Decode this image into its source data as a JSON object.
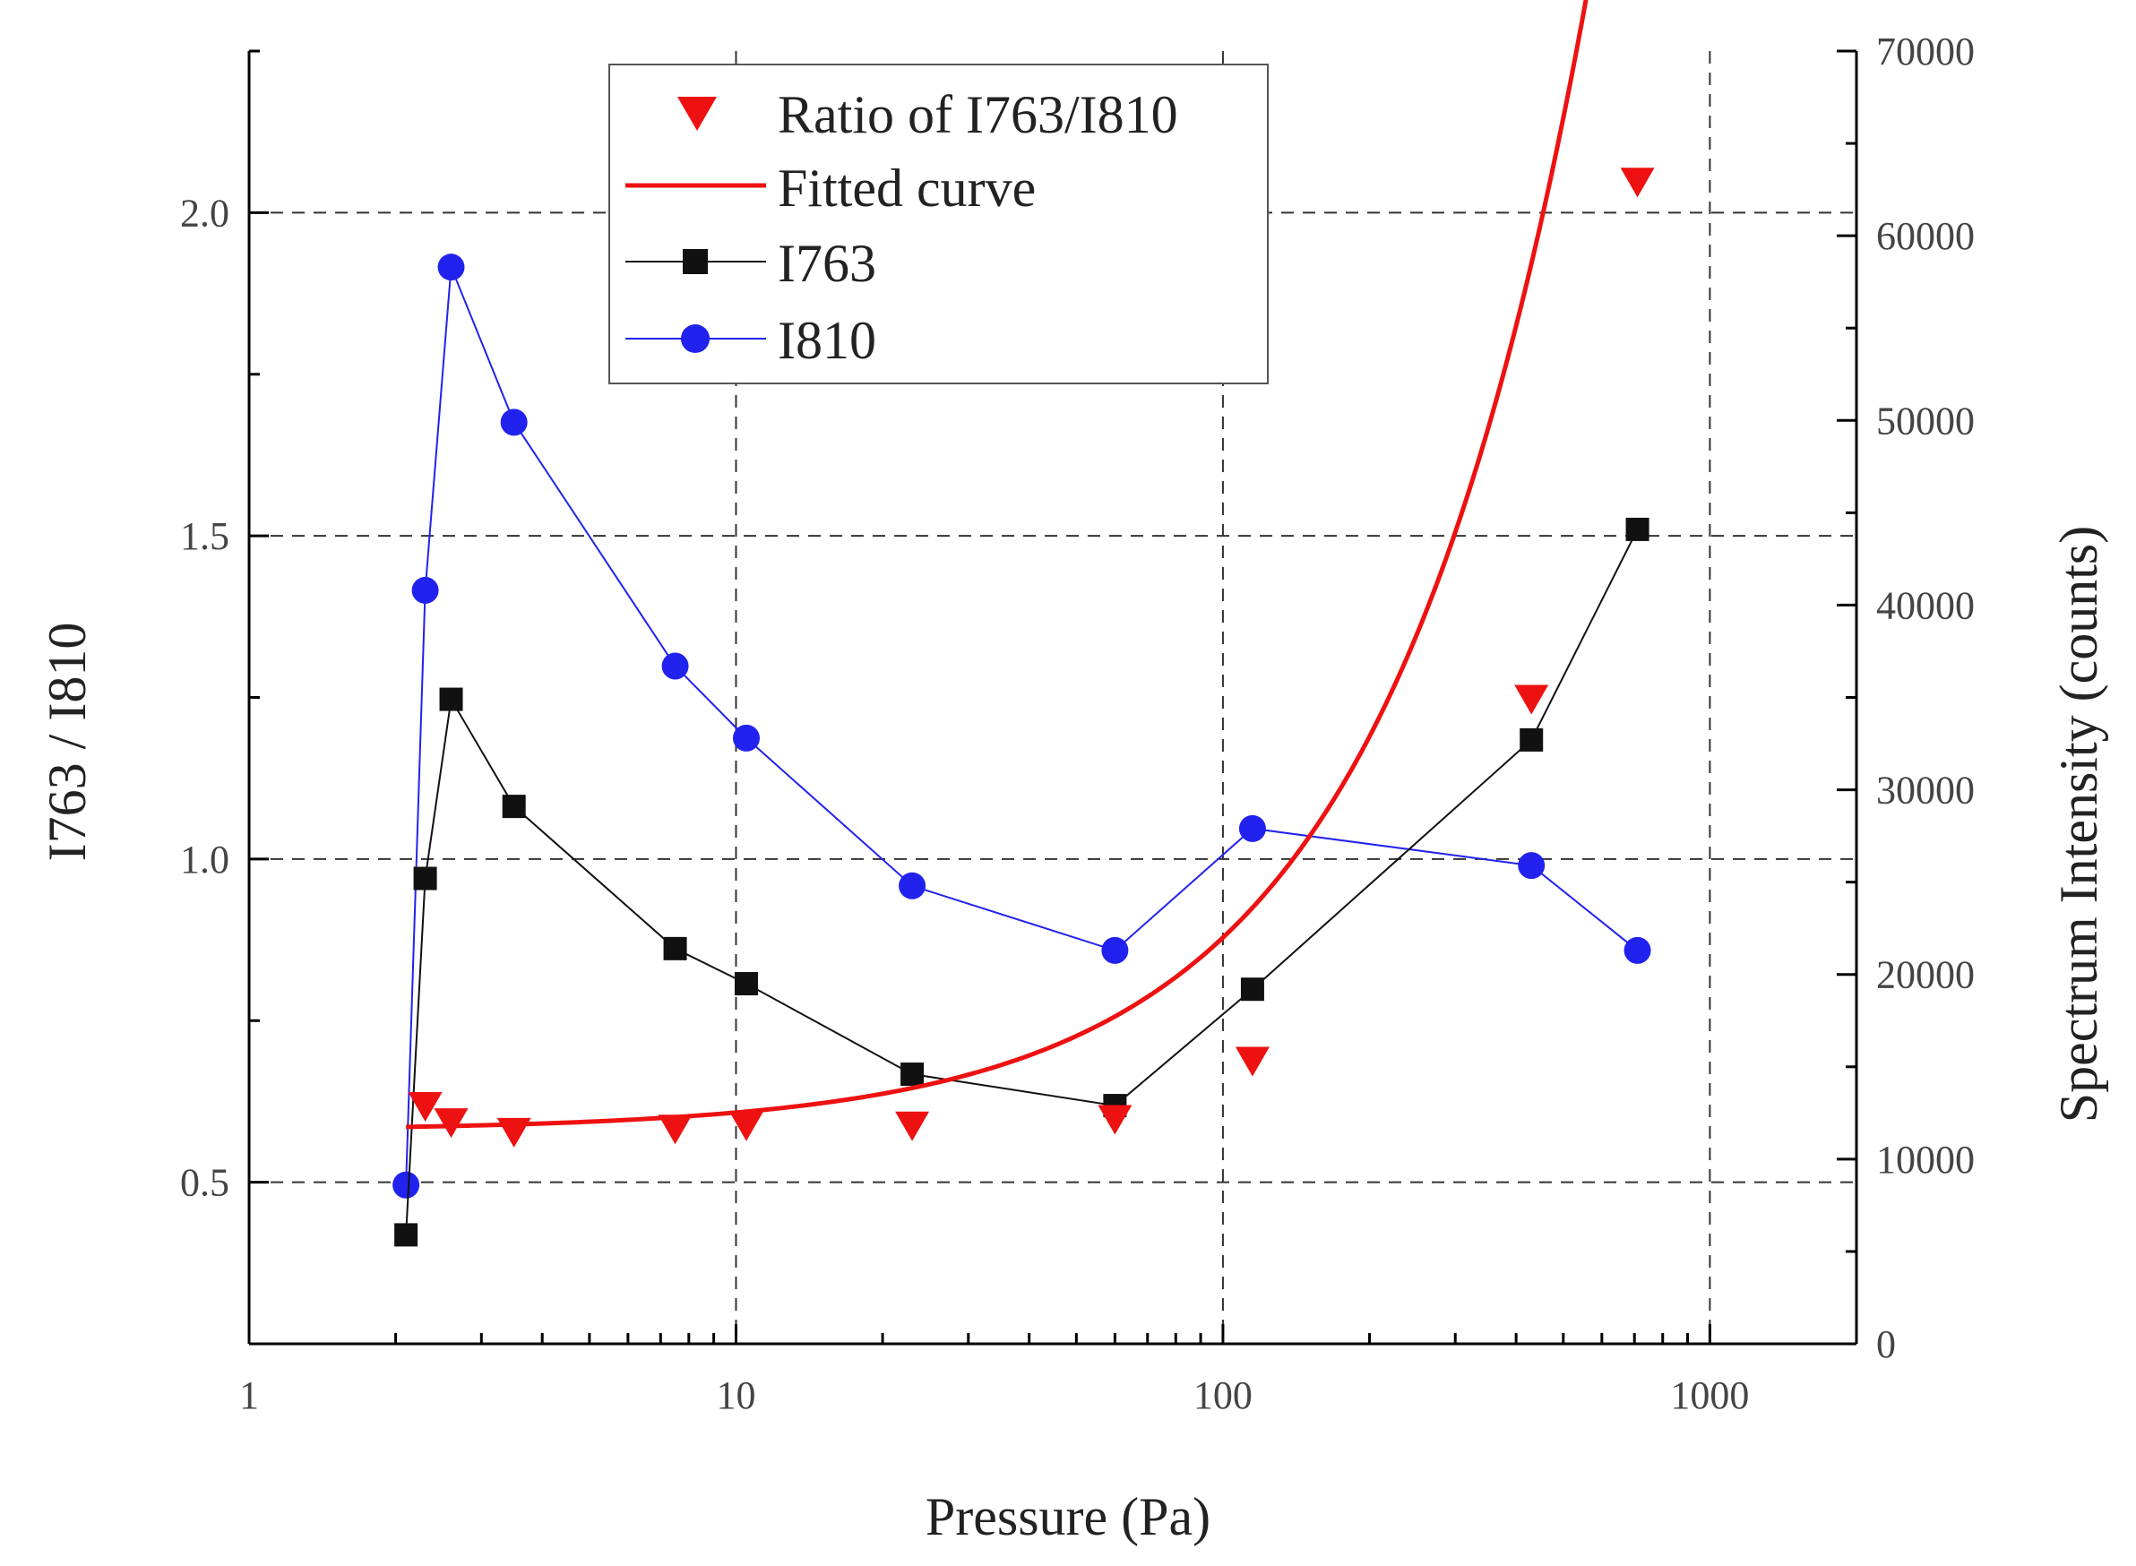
{
  "chart_data": {
    "type": "scatter",
    "xlabel": "Pressure (Pa)",
    "ylabel": "I763 / I810",
    "y2label": "Spectrum Intensity (counts)",
    "xscale": "log",
    "xlim": [
      1,
      2000
    ],
    "ylim": [
      0.25,
      2.25
    ],
    "y2lim": [
      0,
      70000
    ],
    "x_ticks": [
      1,
      10,
      100,
      1000
    ],
    "x_tick_labels": [
      "1",
      "10",
      "100",
      "1000"
    ],
    "y_ticks": [
      0.5,
      1.0,
      1.5,
      2.0
    ],
    "y_tick_labels": [
      "0.5",
      "1.0",
      "1.5",
      "2.0"
    ],
    "y2_ticks": [
      0,
      10000,
      20000,
      30000,
      40000,
      50000,
      60000,
      70000
    ],
    "y2_tick_labels": [
      "0",
      "10000",
      "20000",
      "30000",
      "40000",
      "50000",
      "60000",
      "70000"
    ],
    "grid": "dashed at ticks",
    "legend_position": "top-center",
    "series": [
      {
        "name": "Ratio of  I763/I810",
        "axis": "left",
        "style": "markers",
        "marker": "triangle-down",
        "color": "#ee1111",
        "x": [
          2.3,
          2.6,
          3.5,
          7.5,
          10.5,
          23,
          60,
          115,
          430,
          710
        ],
        "y": [
          0.62,
          0.595,
          0.58,
          0.585,
          0.59,
          0.59,
          0.6,
          0.69,
          1.25,
          2.05
        ]
      },
      {
        "name": "Fitted curve",
        "axis": "left",
        "style": "line",
        "color": "#ee1111",
        "model": "y = 0.58 + 0.0026 * x^1.03",
        "x_range": [
          2.1,
          710
        ]
      },
      {
        "name": "I763",
        "axis": "right",
        "style": "line-markers",
        "marker": "square",
        "color": "#111111",
        "x": [
          2.1,
          2.3,
          2.6,
          3.5,
          7.5,
          10.5,
          23,
          60,
          115,
          430,
          710
        ],
        "y": [
          5900,
          25200,
          34900,
          29100,
          21400,
          19500,
          14600,
          12900,
          19200,
          32700,
          44100
        ]
      },
      {
        "name": "I810",
        "axis": "right",
        "style": "line-markers",
        "marker": "circle",
        "color": "#2222ee",
        "x": [
          2.1,
          2.3,
          2.6,
          3.5,
          7.5,
          10.5,
          23,
          60,
          115,
          430,
          710
        ],
        "y": [
          8600,
          40800,
          58300,
          49900,
          36700,
          32800,
          24800,
          21300,
          27900,
          25900,
          21300
        ]
      }
    ]
  }
}
